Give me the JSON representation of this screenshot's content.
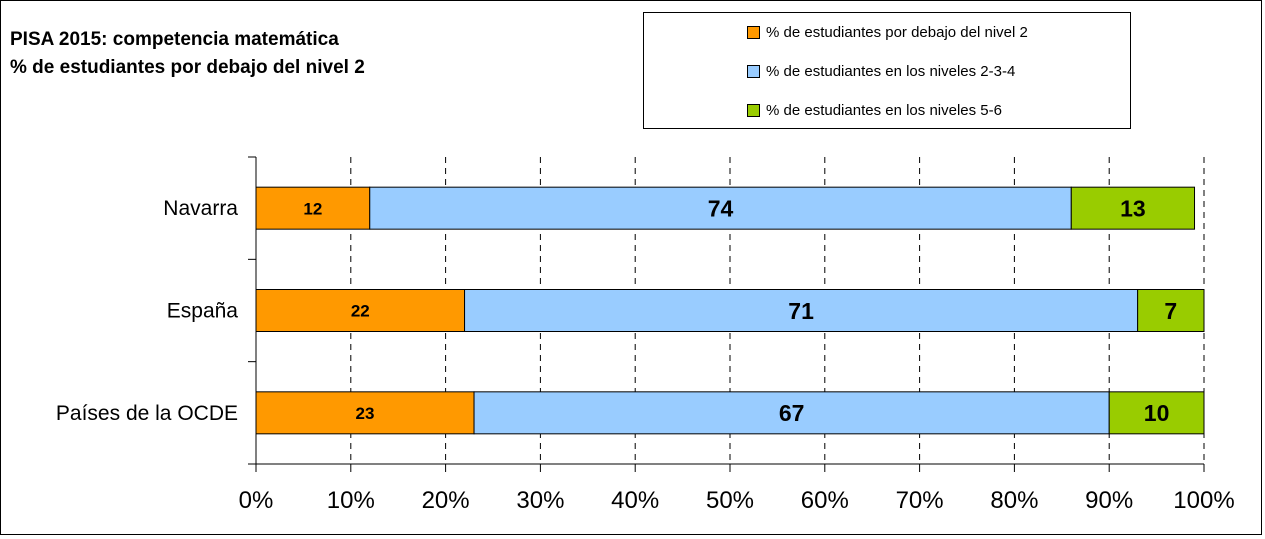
{
  "chart_data": {
    "type": "bar",
    "orientation": "horizontal",
    "stacked": "percent",
    "title_lines": [
      "PISA 2015: competencia matemática",
      "% de estudiantes por debajo del nivel 2"
    ],
    "categories": [
      "Navarra",
      "España",
      "Países de la OCDE"
    ],
    "series": [
      {
        "name": "% de estudiantes por debajo del nivel 2",
        "color": "#FF9900",
        "values": [
          12,
          22,
          23
        ]
      },
      {
        "name": "% de estudiantes en los niveles 2-3-4",
        "color": "#99CCFF",
        "values": [
          74,
          71,
          67
        ]
      },
      {
        "name": "% de estudiantes en los niveles 5-6",
        "color": "#99CC00",
        "values": [
          13,
          7,
          10
        ]
      }
    ],
    "xlim": [
      0,
      100
    ],
    "x_ticks": [
      "0%",
      "10%",
      "20%",
      "30%",
      "40%",
      "50%",
      "60%",
      "70%",
      "80%",
      "90%",
      "100%"
    ],
    "grid": "vertical-dashed",
    "legend_position": "top-right"
  }
}
